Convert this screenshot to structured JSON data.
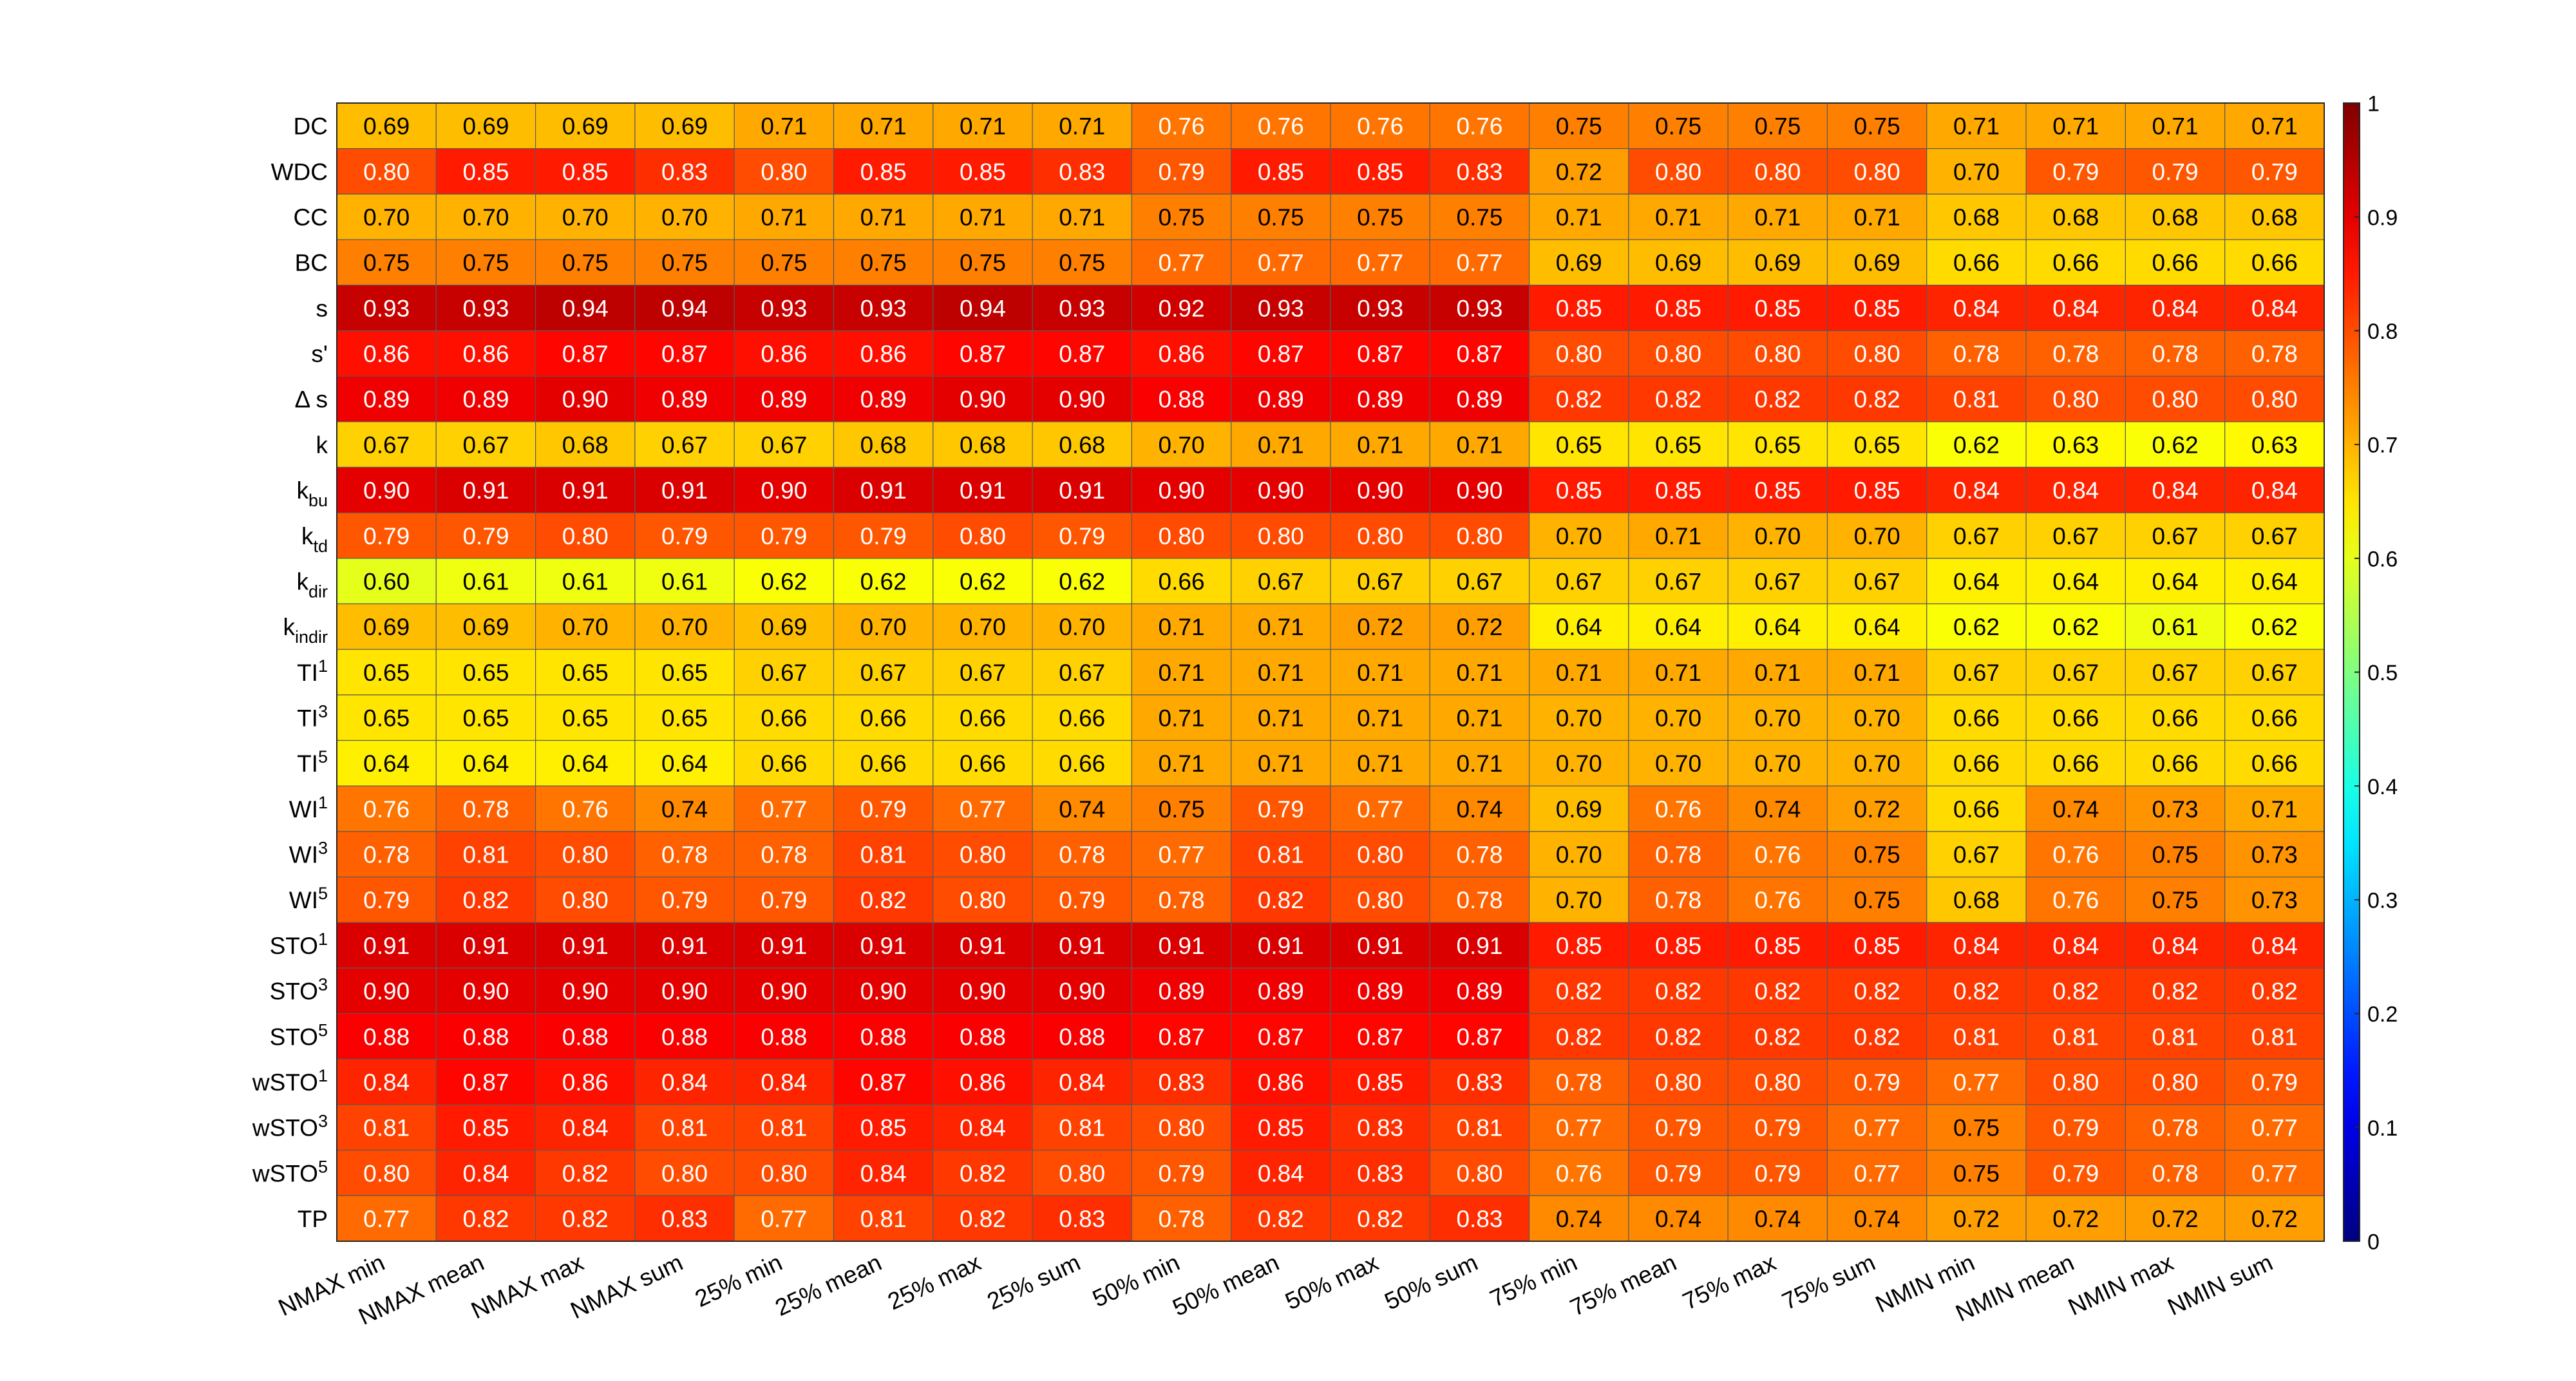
{
  "chart_data": {
    "type": "heatmap",
    "title": "",
    "colormap": "jet",
    "color_range": [
      0,
      1
    ],
    "colorbar_ticks": [
      "0",
      "0.1",
      "0.2",
      "0.3",
      "0.4",
      "0.5",
      "0.6",
      "0.7",
      "0.8",
      "0.9",
      "1"
    ],
    "x_labels": [
      "NMAX min",
      "NMAX mean",
      "NMAX max",
      "NMAX sum",
      "25% min",
      "25% mean",
      "25% max",
      "25% sum",
      "50% min",
      "50% mean",
      "50% max",
      "50% sum",
      "75% min",
      "75% mean",
      "75% max",
      "75% sum",
      "NMIN min",
      "NMIN mean",
      "NMIN max",
      "NMIN sum"
    ],
    "y_labels": [
      {
        "base": "DC",
        "sub": "",
        "sup": ""
      },
      {
        "base": "WDC",
        "sub": "",
        "sup": ""
      },
      {
        "base": "CC",
        "sub": "",
        "sup": ""
      },
      {
        "base": "BC",
        "sub": "",
        "sup": ""
      },
      {
        "base": "s",
        "sub": "",
        "sup": ""
      },
      {
        "base": "s'",
        "sub": "",
        "sup": ""
      },
      {
        "base": "Δ s",
        "sub": "",
        "sup": ""
      },
      {
        "base": "k",
        "sub": "",
        "sup": ""
      },
      {
        "base": "k",
        "sub": "bu",
        "sup": ""
      },
      {
        "base": "k",
        "sub": "td",
        "sup": ""
      },
      {
        "base": "k",
        "sub": "dir",
        "sup": ""
      },
      {
        "base": "k",
        "sub": "indir",
        "sup": ""
      },
      {
        "base": "TI",
        "sub": "",
        "sup": "1"
      },
      {
        "base": "TI",
        "sub": "",
        "sup": "3"
      },
      {
        "base": "TI",
        "sub": "",
        "sup": "5"
      },
      {
        "base": "WI",
        "sub": "",
        "sup": "1"
      },
      {
        "base": "WI",
        "sub": "",
        "sup": "3"
      },
      {
        "base": "WI",
        "sub": "",
        "sup": "5"
      },
      {
        "base": "STO",
        "sub": "",
        "sup": "1"
      },
      {
        "base": "STO",
        "sub": "",
        "sup": "3"
      },
      {
        "base": "STO",
        "sub": "",
        "sup": "5"
      },
      {
        "base": "wSTO",
        "sub": "",
        "sup": "1"
      },
      {
        "base": "wSTO",
        "sub": "",
        "sup": "3"
      },
      {
        "base": "wSTO",
        "sub": "",
        "sup": "5"
      },
      {
        "base": "TP",
        "sub": "",
        "sup": ""
      }
    ],
    "values": [
      [
        "0.69",
        "0.69",
        "0.69",
        "0.69",
        "0.71",
        "0.71",
        "0.71",
        "0.71",
        "0.76",
        "0.76",
        "0.76",
        "0.76",
        "0.75",
        "0.75",
        "0.75",
        "0.75",
        "0.71",
        "0.71",
        "0.71",
        "0.71"
      ],
      [
        "0.80",
        "0.85",
        "0.85",
        "0.83",
        "0.80",
        "0.85",
        "0.85",
        "0.83",
        "0.79",
        "0.85",
        "0.85",
        "0.83",
        "0.72",
        "0.80",
        "0.80",
        "0.80",
        "0.70",
        "0.79",
        "0.79",
        "0.79"
      ],
      [
        "0.70",
        "0.70",
        "0.70",
        "0.70",
        "0.71",
        "0.71",
        "0.71",
        "0.71",
        "0.75",
        "0.75",
        "0.75",
        "0.75",
        "0.71",
        "0.71",
        "0.71",
        "0.71",
        "0.68",
        "0.68",
        "0.68",
        "0.68"
      ],
      [
        "0.75",
        "0.75",
        "0.75",
        "0.75",
        "0.75",
        "0.75",
        "0.75",
        "0.75",
        "0.77",
        "0.77",
        "0.77",
        "0.77",
        "0.69",
        "0.69",
        "0.69",
        "0.69",
        "0.66",
        "0.66",
        "0.66",
        "0.66"
      ],
      [
        "0.93",
        "0.93",
        "0.94",
        "0.94",
        "0.93",
        "0.93",
        "0.94",
        "0.93",
        "0.92",
        "0.93",
        "0.93",
        "0.93",
        "0.85",
        "0.85",
        "0.85",
        "0.85",
        "0.84",
        "0.84",
        "0.84",
        "0.84"
      ],
      [
        "0.86",
        "0.86",
        "0.87",
        "0.87",
        "0.86",
        "0.86",
        "0.87",
        "0.87",
        "0.86",
        "0.87",
        "0.87",
        "0.87",
        "0.80",
        "0.80",
        "0.80",
        "0.80",
        "0.78",
        "0.78",
        "0.78",
        "0.78"
      ],
      [
        "0.89",
        "0.89",
        "0.90",
        "0.89",
        "0.89",
        "0.89",
        "0.90",
        "0.90",
        "0.88",
        "0.89",
        "0.89",
        "0.89",
        "0.82",
        "0.82",
        "0.82",
        "0.82",
        "0.81",
        "0.80",
        "0.80",
        "0.80"
      ],
      [
        "0.67",
        "0.67",
        "0.68",
        "0.67",
        "0.67",
        "0.68",
        "0.68",
        "0.68",
        "0.70",
        "0.71",
        "0.71",
        "0.71",
        "0.65",
        "0.65",
        "0.65",
        "0.65",
        "0.62",
        "0.63",
        "0.62",
        "0.63"
      ],
      [
        "0.90",
        "0.91",
        "0.91",
        "0.91",
        "0.90",
        "0.91",
        "0.91",
        "0.91",
        "0.90",
        "0.90",
        "0.90",
        "0.90",
        "0.85",
        "0.85",
        "0.85",
        "0.85",
        "0.84",
        "0.84",
        "0.84",
        "0.84"
      ],
      [
        "0.79",
        "0.79",
        "0.80",
        "0.79",
        "0.79",
        "0.79",
        "0.80",
        "0.79",
        "0.80",
        "0.80",
        "0.80",
        "0.80",
        "0.70",
        "0.71",
        "0.70",
        "0.70",
        "0.67",
        "0.67",
        "0.67",
        "0.67"
      ],
      [
        "0.60",
        "0.61",
        "0.61",
        "0.61",
        "0.62",
        "0.62",
        "0.62",
        "0.62",
        "0.66",
        "0.67",
        "0.67",
        "0.67",
        "0.67",
        "0.67",
        "0.67",
        "0.67",
        "0.64",
        "0.64",
        "0.64",
        "0.64"
      ],
      [
        "0.69",
        "0.69",
        "0.70",
        "0.70",
        "0.69",
        "0.70",
        "0.70",
        "0.70",
        "0.71",
        "0.71",
        "0.72",
        "0.72",
        "0.64",
        "0.64",
        "0.64",
        "0.64",
        "0.62",
        "0.62",
        "0.61",
        "0.62"
      ],
      [
        "0.65",
        "0.65",
        "0.65",
        "0.65",
        "0.67",
        "0.67",
        "0.67",
        "0.67",
        "0.71",
        "0.71",
        "0.71",
        "0.71",
        "0.71",
        "0.71",
        "0.71",
        "0.71",
        "0.67",
        "0.67",
        "0.67",
        "0.67"
      ],
      [
        "0.65",
        "0.65",
        "0.65",
        "0.65",
        "0.66",
        "0.66",
        "0.66",
        "0.66",
        "0.71",
        "0.71",
        "0.71",
        "0.71",
        "0.70",
        "0.70",
        "0.70",
        "0.70",
        "0.66",
        "0.66",
        "0.66",
        "0.66"
      ],
      [
        "0.64",
        "0.64",
        "0.64",
        "0.64",
        "0.66",
        "0.66",
        "0.66",
        "0.66",
        "0.71",
        "0.71",
        "0.71",
        "0.71",
        "0.70",
        "0.70",
        "0.70",
        "0.70",
        "0.66",
        "0.66",
        "0.66",
        "0.66"
      ],
      [
        "0.76",
        "0.78",
        "0.76",
        "0.74",
        "0.77",
        "0.79",
        "0.77",
        "0.74",
        "0.75",
        "0.79",
        "0.77",
        "0.74",
        "0.69",
        "0.76",
        "0.74",
        "0.72",
        "0.66",
        "0.74",
        "0.73",
        "0.71"
      ],
      [
        "0.78",
        "0.81",
        "0.80",
        "0.78",
        "0.78",
        "0.81",
        "0.80",
        "0.78",
        "0.77",
        "0.81",
        "0.80",
        "0.78",
        "0.70",
        "0.78",
        "0.76",
        "0.75",
        "0.67",
        "0.76",
        "0.75",
        "0.73"
      ],
      [
        "0.79",
        "0.82",
        "0.80",
        "0.79",
        "0.79",
        "0.82",
        "0.80",
        "0.79",
        "0.78",
        "0.82",
        "0.80",
        "0.78",
        "0.70",
        "0.78",
        "0.76",
        "0.75",
        "0.68",
        "0.76",
        "0.75",
        "0.73"
      ],
      [
        "0.91",
        "0.91",
        "0.91",
        "0.91",
        "0.91",
        "0.91",
        "0.91",
        "0.91",
        "0.91",
        "0.91",
        "0.91",
        "0.91",
        "0.85",
        "0.85",
        "0.85",
        "0.85",
        "0.84",
        "0.84",
        "0.84",
        "0.84"
      ],
      [
        "0.90",
        "0.90",
        "0.90",
        "0.90",
        "0.90",
        "0.90",
        "0.90",
        "0.90",
        "0.89",
        "0.89",
        "0.89",
        "0.89",
        "0.82",
        "0.82",
        "0.82",
        "0.82",
        "0.82",
        "0.82",
        "0.82",
        "0.82"
      ],
      [
        "0.88",
        "0.88",
        "0.88",
        "0.88",
        "0.88",
        "0.88",
        "0.88",
        "0.88",
        "0.87",
        "0.87",
        "0.87",
        "0.87",
        "0.82",
        "0.82",
        "0.82",
        "0.82",
        "0.81",
        "0.81",
        "0.81",
        "0.81"
      ],
      [
        "0.84",
        "0.87",
        "0.86",
        "0.84",
        "0.84",
        "0.87",
        "0.86",
        "0.84",
        "0.83",
        "0.86",
        "0.85",
        "0.83",
        "0.78",
        "0.80",
        "0.80",
        "0.79",
        "0.77",
        "0.80",
        "0.80",
        "0.79"
      ],
      [
        "0.81",
        "0.85",
        "0.84",
        "0.81",
        "0.81",
        "0.85",
        "0.84",
        "0.81",
        "0.80",
        "0.85",
        "0.83",
        "0.81",
        "0.77",
        "0.79",
        "0.79",
        "0.77",
        "0.75",
        "0.79",
        "0.78",
        "0.77"
      ],
      [
        "0.80",
        "0.84",
        "0.82",
        "0.80",
        "0.80",
        "0.84",
        "0.82",
        "0.80",
        "0.79",
        "0.84",
        "0.83",
        "0.80",
        "0.76",
        "0.79",
        "0.79",
        "0.77",
        "0.75",
        "0.79",
        "0.78",
        "0.77"
      ],
      [
        "0.77",
        "0.82",
        "0.82",
        "0.83",
        "0.77",
        "0.81",
        "0.82",
        "0.83",
        "0.78",
        "0.82",
        "0.82",
        "0.83",
        "0.74",
        "0.74",
        "0.74",
        "0.74",
        "0.72",
        "0.72",
        "0.72",
        "0.72"
      ]
    ]
  }
}
